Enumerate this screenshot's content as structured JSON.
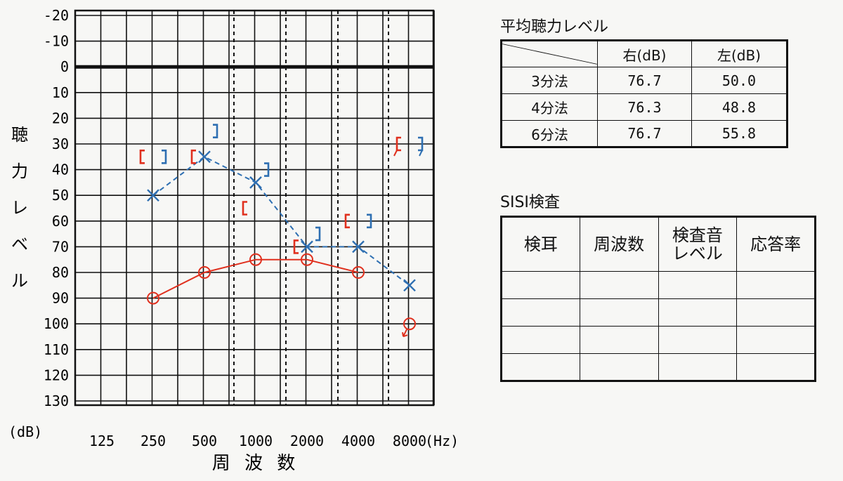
{
  "chart_data": {
    "type": "scatter",
    "y_axis": {
      "ticks": [
        "-20",
        "-10",
        "0",
        "10",
        "20",
        "30",
        "40",
        "50",
        "60",
        "70",
        "80",
        "90",
        "100",
        "110",
        "120",
        "130"
      ],
      "range": [
        -20,
        130
      ],
      "inverted": true,
      "unit_label": "(dB)",
      "title_chars": [
        "聴",
        "力",
        "レ",
        "ベ",
        "ル"
      ]
    },
    "x_axis": {
      "ticks": [
        "125",
        "250",
        "500",
        "1000",
        "2000",
        "4000",
        "8000"
      ],
      "unit_label": "(Hz)",
      "title": "周 波 数",
      "scale": "log2"
    },
    "grid": true,
    "colors": {
      "right": "#e0301e",
      "left": "#2e6fb2",
      "grid": "#111111"
    },
    "series": [
      {
        "ear": "right",
        "kind": "air",
        "marker": "circle",
        "connected": true,
        "x": [
          250,
          500,
          1000,
          2000,
          4000,
          8000
        ],
        "y": [
          90,
          80,
          75,
          75,
          80,
          100
        ],
        "scale_out": [
          false,
          false,
          false,
          false,
          false,
          true
        ]
      },
      {
        "ear": "left",
        "kind": "air",
        "marker": "cross",
        "connected": true,
        "x": [
          250,
          500,
          1000,
          2000,
          4000,
          8000
        ],
        "y": [
          50,
          35,
          45,
          70,
          70,
          85
        ]
      },
      {
        "ear": "right",
        "kind": "bone",
        "marker": "bracket-left",
        "connected": false,
        "x": [
          250,
          500,
          1000,
          2000,
          4000,
          8000
        ],
        "y": [
          35,
          35,
          55,
          70,
          60,
          30
        ],
        "scale_out": [
          false,
          false,
          false,
          false,
          false,
          true
        ]
      },
      {
        "ear": "left",
        "kind": "bone",
        "marker": "bracket-right",
        "connected": false,
        "x": [
          250,
          500,
          1000,
          2000,
          4000,
          8000
        ],
        "y": [
          35,
          25,
          40,
          65,
          60,
          30
        ],
        "scale_out": [
          false,
          false,
          false,
          false,
          false,
          true
        ]
      }
    ]
  },
  "average_table": {
    "title": "平均聴力レベル",
    "headers": [
      "右(dB)",
      "左(dB)"
    ],
    "rows": [
      {
        "label": "3分法",
        "right": "76.7",
        "left": "50.0"
      },
      {
        "label": "4分法",
        "right": "76.3",
        "left": "48.8"
      },
      {
        "label": "6分法",
        "right": "76.7",
        "left": "55.8"
      }
    ]
  },
  "sisi_table": {
    "title": "SISI検査",
    "headers": [
      "検耳",
      "周波数",
      "検査音\nレベル",
      "応答率"
    ]
  }
}
